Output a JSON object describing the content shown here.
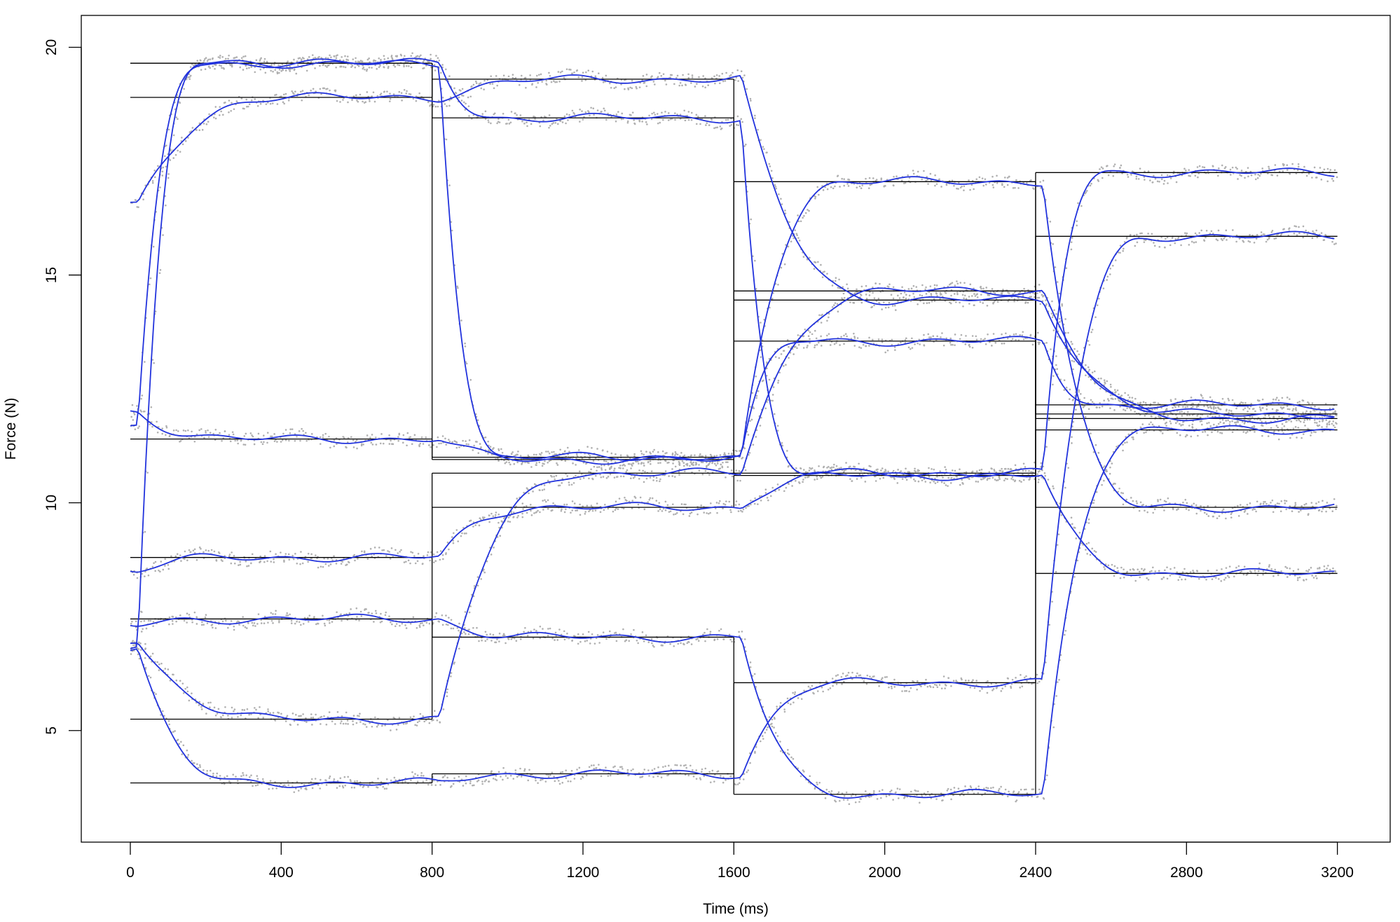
{
  "chart_data": {
    "type": "line",
    "title": "",
    "xlabel": "Time (ms)",
    "ylabel": "Force (N)",
    "xlim": [
      -130,
      3340
    ],
    "ylim": [
      2.55,
      20.7
    ],
    "xticks": [
      0,
      400,
      800,
      1200,
      1600,
      2000,
      2400,
      2800,
      3200
    ],
    "yticks": [
      5,
      10,
      15,
      20
    ],
    "grid": false,
    "legend": "none",
    "colors": {
      "target": "#000000",
      "smoothed": "#2233dd",
      "raw": "#b0b0b0"
    },
    "segment_bounds": [
      0,
      800,
      1600,
      2400,
      3200
    ],
    "series": [
      {
        "kind": "fast",
        "start": 6.8,
        "targets": [
          19.65,
          18.45,
          10.65,
          17.25
        ]
      },
      {
        "kind": "slow",
        "start": 16.5,
        "targets": [
          18.9,
          19.3,
          14.45,
          11.95
        ]
      },
      {
        "kind": "mid",
        "start": 12.0,
        "targets": [
          11.4,
          10.95,
          17.05,
          9.9
        ]
      },
      {
        "kind": "mid",
        "start": 8.5,
        "targets": [
          8.8,
          9.9,
          10.6,
          8.45
        ]
      },
      {
        "kind": "mid",
        "start": 7.3,
        "targets": [
          7.45,
          7.05,
          3.6,
          11.6
        ]
      },
      {
        "kind": "slow",
        "start": 7.0,
        "targets": [
          5.25,
          10.65,
          14.65,
          11.85
        ]
      },
      {
        "kind": "mid",
        "start": 6.8,
        "targets": [
          3.85,
          4.05,
          6.05,
          15.85
        ]
      },
      {
        "kind": "fast",
        "start": 11.6,
        "targets": [
          19.65,
          11.0,
          13.55,
          12.15
        ]
      }
    ]
  }
}
